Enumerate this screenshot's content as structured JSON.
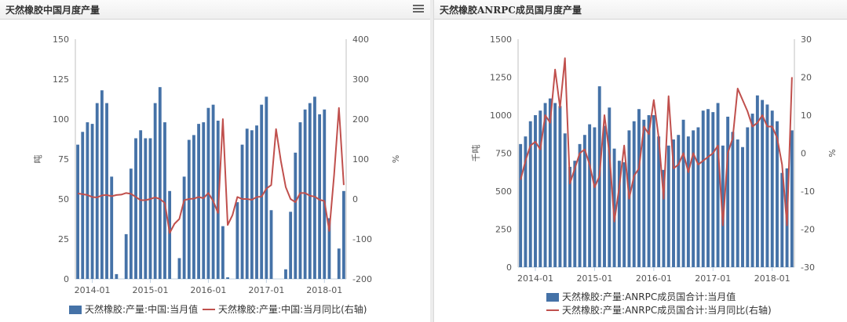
{
  "left": {
    "title": "天然橡胶中国月度产量",
    "menu_icon": "hamburger-menu-icon",
    "chart_data": {
      "type": "bar",
      "title": "天然橡胶中国月度产量",
      "ylabel": "吨",
      "y2label": "%",
      "ylim": [
        0,
        150
      ],
      "yticks": [
        0,
        25,
        50,
        75,
        100,
        125,
        150
      ],
      "y2lim": [
        -200,
        400
      ],
      "y2ticks": [
        -200,
        -100,
        0,
        100,
        200,
        300,
        400
      ],
      "xtick_labels": [
        "2014-01",
        "2015-01",
        "2016-01",
        "2017-01",
        "2018-01"
      ],
      "grid": false,
      "legend_position": "bottom",
      "series": [
        {
          "name": "天然橡胶:产量:中国:当月值",
          "type": "bar",
          "axis": "left",
          "color": "#4572a7",
          "values": [
            84,
            92,
            98,
            97,
            110,
            118,
            110,
            64,
            3,
            0,
            28,
            69,
            88,
            93,
            88,
            88,
            110,
            120,
            98,
            55,
            0,
            13,
            64,
            87,
            90,
            97,
            98,
            107,
            109,
            99,
            33,
            1,
            0,
            48,
            84,
            94,
            93,
            96,
            109,
            114,
            43,
            0,
            0,
            6,
            42,
            79,
            98,
            106,
            110,
            114,
            103,
            106,
            38,
            0,
            19,
            55
          ]
        },
        {
          "name": "天然橡胶:产量:中国:当月同比(右轴)",
          "type": "line",
          "axis": "right",
          "color": "#c0504d",
          "values": [
            14,
            12,
            10,
            5,
            4,
            9,
            10,
            7,
            10,
            11,
            15,
            13,
            5,
            -3,
            -3,
            0,
            4,
            0,
            -10,
            -85,
            -62,
            -50,
            -3,
            0,
            1,
            5,
            2,
            15,
            -5,
            -35,
            200,
            -65,
            -40,
            5,
            0,
            0,
            -2,
            5,
            6,
            26,
            35,
            175,
            95,
            30,
            0,
            -8,
            15,
            15,
            8,
            6,
            -2,
            -5,
            -80,
            60,
            228,
            35
          ]
        }
      ]
    }
  },
  "right": {
    "title": "天然橡胶ANRPC成员国月度产量",
    "chart_data": {
      "type": "bar",
      "title": "天然橡胶ANRPC成员国月度产量",
      "ylabel": "千吨",
      "y2label": "%",
      "ylim": [
        0,
        1500
      ],
      "yticks": [
        0,
        250,
        500,
        750,
        1000,
        1250,
        1500
      ],
      "y2lim": [
        -30,
        30
      ],
      "y2ticks": [
        -30,
        -20,
        -10,
        0,
        10,
        20,
        30
      ],
      "xtick_labels": [
        "2014-01",
        "2015-01",
        "2016-01",
        "2017-01",
        "2018-01"
      ],
      "grid": false,
      "legend_position": "bottom",
      "series": [
        {
          "name": "天然橡胶:产量:ANRPC成员国合计:当月值",
          "type": "bar",
          "axis": "left",
          "color": "#4572a7",
          "values": [
            810,
            860,
            960,
            1000,
            1030,
            1080,
            1110,
            1080,
            1060,
            880,
            660,
            700,
            810,
            870,
            940,
            920,
            1190,
            930,
            1050,
            780,
            700,
            690,
            900,
            960,
            1040,
            970,
            1000,
            1000,
            860,
            640,
            800,
            840,
            870,
            970,
            860,
            900,
            920,
            1030,
            1040,
            1020,
            1080,
            800,
            990,
            890,
            840,
            790,
            920,
            1010,
            1130,
            1100,
            1070,
            1030,
            960,
            620,
            650,
            900
          ]
        },
        {
          "name": "天然橡胶:产量:ANRPC成员国合计:当月同比(右轴)",
          "type": "line",
          "axis": "right",
          "color": "#c0504d",
          "values": [
            -7,
            -2,
            2,
            3,
            1,
            10,
            8,
            22,
            12,
            25,
            -8,
            -4,
            0,
            1,
            -3,
            -9,
            -6,
            10,
            0,
            -18,
            -9,
            2,
            -12,
            -6,
            -4,
            7,
            5,
            14,
            4,
            -12,
            15,
            -4,
            -3,
            0,
            -5,
            0,
            -3,
            -2,
            -1,
            0,
            2,
            -19,
            0,
            4,
            17,
            14,
            11,
            7,
            8,
            10,
            7,
            7,
            4,
            -3,
            -19,
            20
          ]
        }
      ]
    }
  }
}
